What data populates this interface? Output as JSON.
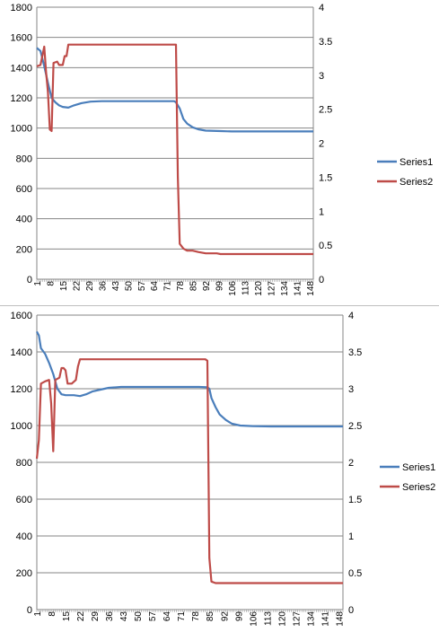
{
  "chart_data": [
    {
      "type": "line",
      "x_ticks": [
        "1",
        "8",
        "15",
        "22",
        "29",
        "36",
        "43",
        "50",
        "57",
        "64",
        "71",
        "78",
        "85",
        "92",
        "99",
        "106",
        "113",
        "120",
        "127",
        "134",
        "141",
        "148"
      ],
      "x_range": [
        1,
        150
      ],
      "ylim": [
        0,
        1800
      ],
      "y_ticks": [
        "0",
        "200",
        "400",
        "600",
        "800",
        "1000",
        "1200",
        "1400",
        "1600",
        "1800"
      ],
      "y2lim": [
        0,
        4
      ],
      "y2_ticks": [
        "0",
        "0.5",
        "1",
        "1.5",
        "2",
        "2.5",
        "3",
        "3.5",
        "4"
      ],
      "grid": true,
      "legend": "right",
      "series": [
        {
          "name": "Series1",
          "axis": "left",
          "color": "#4a7ebb",
          "points": [
            [
              1,
              1530
            ],
            [
              3,
              1510
            ],
            [
              5,
              1410
            ],
            [
              7,
              1300
            ],
            [
              9,
              1200
            ],
            [
              11,
              1170
            ],
            [
              13,
              1150
            ],
            [
              15,
              1140
            ],
            [
              18,
              1135
            ],
            [
              21,
              1150
            ],
            [
              25,
              1165
            ],
            [
              30,
              1175
            ],
            [
              36,
              1178
            ],
            [
              50,
              1178
            ],
            [
              75,
              1178
            ],
            [
              76,
              1170
            ],
            [
              78,
              1130
            ],
            [
              80,
              1060
            ],
            [
              82,
              1030
            ],
            [
              85,
              1005
            ],
            [
              88,
              992
            ],
            [
              92,
              983
            ],
            [
              100,
              980
            ],
            [
              106,
              978
            ],
            [
              150,
              978
            ]
          ]
        },
        {
          "name": "Series2",
          "axis": "right",
          "color": "#be4b48",
          "points": [
            [
              1,
              3.13
            ],
            [
              3,
              3.15
            ],
            [
              5,
              3.42
            ],
            [
              6,
              3.05
            ],
            [
              7,
              2.75
            ],
            [
              8,
              2.2
            ],
            [
              9,
              2.18
            ],
            [
              10,
              3.18
            ],
            [
              12,
              3.2
            ],
            [
              13,
              3.15
            ],
            [
              15,
              3.15
            ],
            [
              16,
              3.28
            ],
            [
              17,
              3.28
            ],
            [
              18,
              3.45
            ],
            [
              22,
              3.45
            ],
            [
              40,
              3.45
            ],
            [
              60,
              3.45
            ],
            [
              75,
              3.45
            ],
            [
              76,
              3.45
            ],
            [
              77,
              1.5
            ],
            [
              78,
              0.52
            ],
            [
              80,
              0.45
            ],
            [
              82,
              0.42
            ],
            [
              85,
              0.42
            ],
            [
              88,
              0.4
            ],
            [
              92,
              0.38
            ],
            [
              98,
              0.38
            ],
            [
              100,
              0.37
            ],
            [
              150,
              0.37
            ]
          ]
        }
      ]
    },
    {
      "type": "line",
      "x_ticks": [
        "1",
        "8",
        "15",
        "22",
        "29",
        "36",
        "43",
        "50",
        "57",
        "64",
        "71",
        "78",
        "85",
        "92",
        "99",
        "106",
        "113",
        "120",
        "127",
        "134",
        "141",
        "148"
      ],
      "x_range": [
        1,
        150
      ],
      "ylim": [
        0,
        1600
      ],
      "y_ticks": [
        "0",
        "200",
        "400",
        "600",
        "800",
        "1000",
        "1200",
        "1400",
        "1600"
      ],
      "y2lim": [
        0,
        4
      ],
      "y2_ticks": [
        "0",
        "0.5",
        "1",
        "1.5",
        "2",
        "2.5",
        "3",
        "3.5",
        "4"
      ],
      "grid": true,
      "legend": "right",
      "series": [
        {
          "name": "Series1",
          "axis": "left",
          "color": "#4a7ebb",
          "points": [
            [
              1,
              1510
            ],
            [
              2,
              1490
            ],
            [
              3,
              1420
            ],
            [
              5,
              1390
            ],
            [
              7,
              1340
            ],
            [
              9,
              1280
            ],
            [
              11,
              1200
            ],
            [
              13,
              1170
            ],
            [
              15,
              1165
            ],
            [
              19,
              1165
            ],
            [
              22,
              1160
            ],
            [
              25,
              1170
            ],
            [
              28,
              1185
            ],
            [
              32,
              1195
            ],
            [
              36,
              1205
            ],
            [
              42,
              1210
            ],
            [
              48,
              1210
            ],
            [
              54,
              1210
            ],
            [
              60,
              1210
            ],
            [
              70,
              1210
            ],
            [
              80,
              1210
            ],
            [
              84,
              1208
            ],
            [
              85,
              1200
            ],
            [
              86,
              1150
            ],
            [
              88,
              1100
            ],
            [
              90,
              1060
            ],
            [
              93,
              1030
            ],
            [
              96,
              1010
            ],
            [
              100,
              1000
            ],
            [
              106,
              997
            ],
            [
              115,
              995
            ],
            [
              150,
              995
            ]
          ]
        },
        {
          "name": "Series2",
          "axis": "right",
          "color": "#be4b48",
          "points": [
            [
              1,
              2.05
            ],
            [
              2,
              2.3
            ],
            [
              3,
              3.07
            ],
            [
              5,
              3.1
            ],
            [
              7,
              3.12
            ],
            [
              8,
              2.8
            ],
            [
              9,
              2.15
            ],
            [
              10,
              3.12
            ],
            [
              12,
              3.15
            ],
            [
              13,
              3.28
            ],
            [
              14,
              3.28
            ],
            [
              15,
              3.25
            ],
            [
              16,
              3.07
            ],
            [
              18,
              3.07
            ],
            [
              20,
              3.12
            ],
            [
              21,
              3.3
            ],
            [
              22,
              3.4
            ],
            [
              40,
              3.4
            ],
            [
              60,
              3.4
            ],
            [
              80,
              3.4
            ],
            [
              83,
              3.4
            ],
            [
              84,
              3.38
            ],
            [
              85,
              0.7
            ],
            [
              86,
              0.38
            ],
            [
              88,
              0.36
            ],
            [
              100,
              0.36
            ],
            [
              150,
              0.36
            ]
          ]
        }
      ]
    }
  ]
}
